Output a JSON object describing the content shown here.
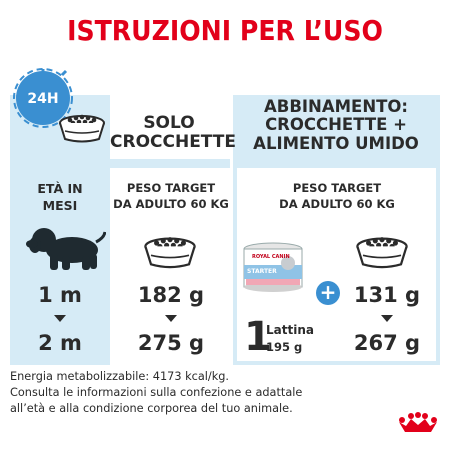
{
  "title": "ISTRUZIONI PER L’USO",
  "clock": {
    "label": "24H",
    "icon": "clock-icon"
  },
  "left_panel": {
    "header": "SOLO\nCROCCHETTE",
    "col_age_label": "ETÀ IN\nMESI",
    "col_weight_label": "PESO TARGET\nDA ADULTO 60 KG",
    "ages": [
      "1 m",
      "2 m"
    ],
    "amounts": [
      "182 g",
      "275 g"
    ]
  },
  "right_panel": {
    "header": "ABBINAMENTO:\nCROCCHETTE +\nALIMENTO UMIDO",
    "col_weight_label": "PESO TARGET\nDA ADULTO 60 KG",
    "can_count": "1",
    "can_label": "Lattina",
    "can_weight": "195 g",
    "plus_symbol": "+",
    "amounts": [
      "131 g",
      "267 g"
    ],
    "can_brand": "ROYAL CANIN",
    "can_product": "STARTER"
  },
  "footer": {
    "line1": "Energia metabolizzabile: 4173 kcal/kg.",
    "line2": "Consulta le informazioni sulla confezione e adattale",
    "line3": "all’età e alla condizione corporea del tuo animale."
  },
  "colors": {
    "title": "#e2001a",
    "panel_bg": "#d6ebf6",
    "accent_blue": "#3a8fd1",
    "text": "#2b2b2b"
  },
  "brand": "ROYAL CANIN"
}
